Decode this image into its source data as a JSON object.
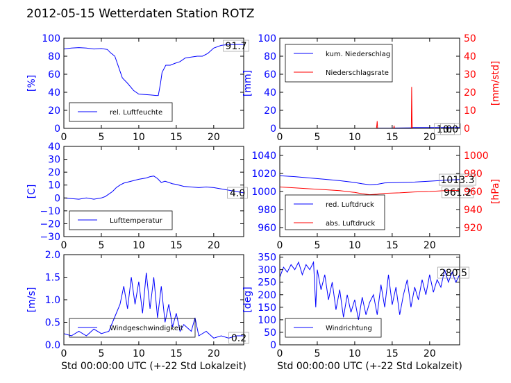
{
  "figure_title": "2012-05-15 Wetterdaten Station ROTZ",
  "colors": {
    "primary": "#0000ff",
    "secondary": "#ff0000",
    "axis": "#000000"
  },
  "chart_data": [
    {
      "type": "line",
      "ylabel": "[%]",
      "xlim": [
        0,
        24
      ],
      "ylim": [
        0,
        100
      ],
      "xticks": [
        0,
        5,
        10,
        15,
        20
      ],
      "yticks": [
        0,
        20,
        40,
        60,
        80,
        100
      ],
      "legend": {
        "location": "lower-left",
        "entries": [
          "rel. Luftfeuchte"
        ]
      },
      "annotations": [
        "91.7"
      ],
      "series": [
        {
          "name": "rel. Luftfeuchte",
          "color": "#0000ff",
          "axis": "left",
          "x": [
            0,
            1,
            2,
            3,
            4,
            5,
            5.8,
            6.2,
            6.8,
            7.3,
            7.8,
            8.5,
            9.3,
            10,
            10.8,
            11.6,
            12.3,
            12.6,
            12.9,
            13.1,
            13.6,
            14.2,
            14.8,
            15.5,
            16.2,
            17,
            17.8,
            18.5,
            19.2,
            20,
            21,
            22,
            23,
            24
          ],
          "y": [
            88,
            89,
            89.5,
            89,
            88,
            88.5,
            87.5,
            84,
            80,
            68,
            56,
            50,
            42,
            38,
            37.5,
            37,
            36.5,
            36.5,
            50,
            62,
            70,
            70,
            72,
            74,
            78,
            79,
            80,
            80,
            83,
            89,
            92,
            93,
            93,
            93
          ]
        }
      ]
    },
    {
      "type": "line",
      "ylabel": "[mm]",
      "y2label": "[mm/std]",
      "xlim": [
        0,
        24
      ],
      "ylim": [
        0,
        100
      ],
      "y2lim": [
        0,
        50
      ],
      "xticks": [
        0,
        5,
        10,
        15,
        20
      ],
      "yticks": [
        0,
        20,
        40,
        60,
        80,
        100
      ],
      "y2ticks": [
        0,
        10,
        20,
        30,
        40,
        50
      ],
      "legend": {
        "location": "top-left",
        "entries": [
          "kum. Niederschlag",
          "Niederschlagsrate"
        ]
      },
      "annotations": [
        "1.0",
        "0.0"
      ],
      "series": [
        {
          "name": "kum. Niederschlag",
          "color": "#0000ff",
          "axis": "left",
          "x": [
            0,
            12.9,
            13,
            15,
            15.2,
            17.5,
            17.7,
            24
          ],
          "y": [
            0,
            0,
            0.2,
            0.3,
            0.4,
            0.5,
            1.0,
            1.0
          ]
        },
        {
          "name": "Niederschlagsrate",
          "color": "#ff0000",
          "axis": "right",
          "x": [
            0,
            12.9,
            12.95,
            13,
            13.05,
            15.2,
            15.25,
            15.3,
            17.55,
            17.6,
            17.65,
            17.7,
            24
          ],
          "y": [
            0,
            0,
            2,
            4,
            0,
            0,
            1.5,
            0,
            0,
            23,
            5,
            0,
            0
          ]
        }
      ]
    },
    {
      "type": "line",
      "ylabel": "[C]",
      "xlim": [
        0,
        24
      ],
      "ylim": [
        -30,
        40
      ],
      "xticks": [
        0,
        5,
        10,
        15,
        20
      ],
      "yticks": [
        -30,
        -20,
        -10,
        0,
        10,
        20,
        30,
        40
      ],
      "legend": {
        "location": "lower-left",
        "entries": [
          "Lufttemperatur"
        ]
      },
      "annotations": [
        "4.0"
      ],
      "series": [
        {
          "name": "Lufttemperatur",
          "color": "#0000ff",
          "axis": "left",
          "x": [
            0,
            1,
            2,
            3,
            4,
            5,
            5.5,
            6,
            6.5,
            7,
            7.5,
            8,
            9,
            10,
            11,
            11.5,
            12,
            12.5,
            13,
            13.5,
            14,
            14.5,
            15,
            16,
            17,
            18,
            19,
            20,
            21,
            22,
            23,
            24
          ],
          "y": [
            0,
            -0.5,
            -1,
            0,
            -1,
            0,
            1,
            3,
            5,
            8,
            10,
            11.5,
            13,
            14.5,
            15.5,
            16.5,
            17,
            15,
            12,
            13,
            12,
            11,
            10.5,
            9,
            8.5,
            8,
            8.5,
            8,
            7,
            6,
            5,
            4
          ]
        }
      ]
    },
    {
      "type": "line",
      "ylabel": "",
      "y2label": "[hPa]",
      "xlim": [
        0,
        24
      ],
      "ylim": [
        950,
        1050
      ],
      "y2lim": [
        910,
        1010
      ],
      "xticks": [
        0,
        5,
        10,
        15,
        20
      ],
      "yticks": [
        960,
        980,
        1000,
        1020,
        1040
      ],
      "y2ticks": [
        920,
        940,
        960,
        980,
        1000
      ],
      "legend": {
        "location": "lower-left",
        "entries": [
          "red. Luftdruck",
          "abs. Luftdruck"
        ]
      },
      "annotations": [
        "1013.3",
        "961.2"
      ],
      "series": [
        {
          "name": "red. Luftdruck",
          "color": "#0000ff",
          "axis": "left",
          "x": [
            0,
            2,
            4,
            6,
            8,
            10,
            11,
            12,
            13,
            14,
            16,
            18,
            20,
            22,
            24
          ],
          "y": [
            1017.5,
            1016.5,
            1015,
            1013.5,
            1012,
            1010,
            1008.5,
            1007.5,
            1008,
            1009.5,
            1010,
            1010.5,
            1011.5,
            1012.5,
            1013.3
          ]
        },
        {
          "name": "abs. Luftdruck",
          "color": "#ff0000",
          "axis": "right",
          "x": [
            0,
            2,
            4,
            6,
            8,
            10,
            11,
            12,
            13,
            14,
            16,
            18,
            20,
            22,
            24
          ],
          "y": [
            965,
            964,
            963,
            962,
            961,
            959,
            957.5,
            956.5,
            957,
            958,
            958.5,
            959.5,
            960,
            961,
            961.2
          ]
        }
      ]
    },
    {
      "type": "line",
      "ylabel": "[m/s]",
      "xlabel": "Std 00:00:00 UTC (+-22 Std Lokalzeit)",
      "xlim": [
        0,
        24
      ],
      "ylim": [
        0,
        2
      ],
      "xticks": [
        0,
        5,
        10,
        15,
        20
      ],
      "yticks": [
        0.0,
        0.5,
        1.0,
        1.5,
        2.0
      ],
      "legend": {
        "location": "lower-center",
        "entries": [
          "Windgeschwindigkeit"
        ]
      },
      "annotations": [
        "0.2"
      ],
      "series": [
        {
          "name": "Windgeschwindigkeit",
          "color": "#0000ff",
          "axis": "left",
          "x": [
            0,
            1,
            2,
            3,
            4,
            5,
            6,
            6.5,
            7,
            7.5,
            8,
            8.5,
            9,
            9.5,
            10,
            10.5,
            11,
            11.5,
            12,
            12.5,
            13,
            13.5,
            14,
            14.5,
            15,
            15.5,
            16,
            17,
            17.5,
            18,
            19,
            20,
            21,
            22,
            23,
            24
          ],
          "y": [
            0.25,
            0.2,
            0.3,
            0.2,
            0.35,
            0.25,
            0.3,
            0.5,
            0.7,
            0.9,
            1.3,
            0.8,
            1.5,
            0.9,
            1.4,
            0.7,
            1.6,
            0.8,
            1.5,
            0.6,
            1.3,
            0.5,
            0.9,
            0.4,
            0.7,
            0.3,
            0.45,
            0.3,
            0.6,
            0.2,
            0.3,
            0.15,
            0.2,
            0.15,
            0.2,
            0.2
          ]
        }
      ]
    },
    {
      "type": "line",
      "ylabel": "[deg]",
      "xlabel": "Std 00:00:00 UTC (+-22 Std Lokalzeit)",
      "xlim": [
        0,
        24
      ],
      "ylim": [
        0,
        360
      ],
      "xticks": [
        0,
        5,
        10,
        15,
        20
      ],
      "yticks": [
        0,
        50,
        100,
        150,
        200,
        250,
        300,
        350
      ],
      "legend": {
        "location": "lower-left",
        "entries": [
          "Windrichtung"
        ]
      },
      "annotations": [
        "280.5"
      ],
      "series": [
        {
          "name": "Windrichtung",
          "color": "#0000ff",
          "axis": "left",
          "x": [
            0,
            0.5,
            1,
            1.5,
            2,
            2.5,
            3,
            3.5,
            4,
            4.5,
            4.8,
            5,
            5.5,
            6,
            6.5,
            7,
            7.5,
            8,
            8.5,
            9,
            9.5,
            10,
            10.5,
            11,
            11.5,
            12,
            12.5,
            13,
            13.5,
            14,
            14.5,
            15,
            15.5,
            16,
            16.5,
            17,
            17.5,
            18,
            18.5,
            19,
            19.5,
            20,
            20.5,
            21,
            21.5,
            22,
            22.5,
            23,
            23.5,
            24
          ],
          "y": [
            270,
            310,
            290,
            320,
            300,
            330,
            280,
            320,
            300,
            330,
            150,
            300,
            220,
            280,
            180,
            250,
            140,
            220,
            110,
            200,
            130,
            180,
            100,
            190,
            120,
            170,
            200,
            120,
            240,
            150,
            280,
            160,
            230,
            120,
            200,
            260,
            150,
            230,
            180,
            260,
            200,
            280,
            210,
            260,
            230,
            300,
            250,
            290,
            250,
            280
          ]
        }
      ]
    }
  ]
}
